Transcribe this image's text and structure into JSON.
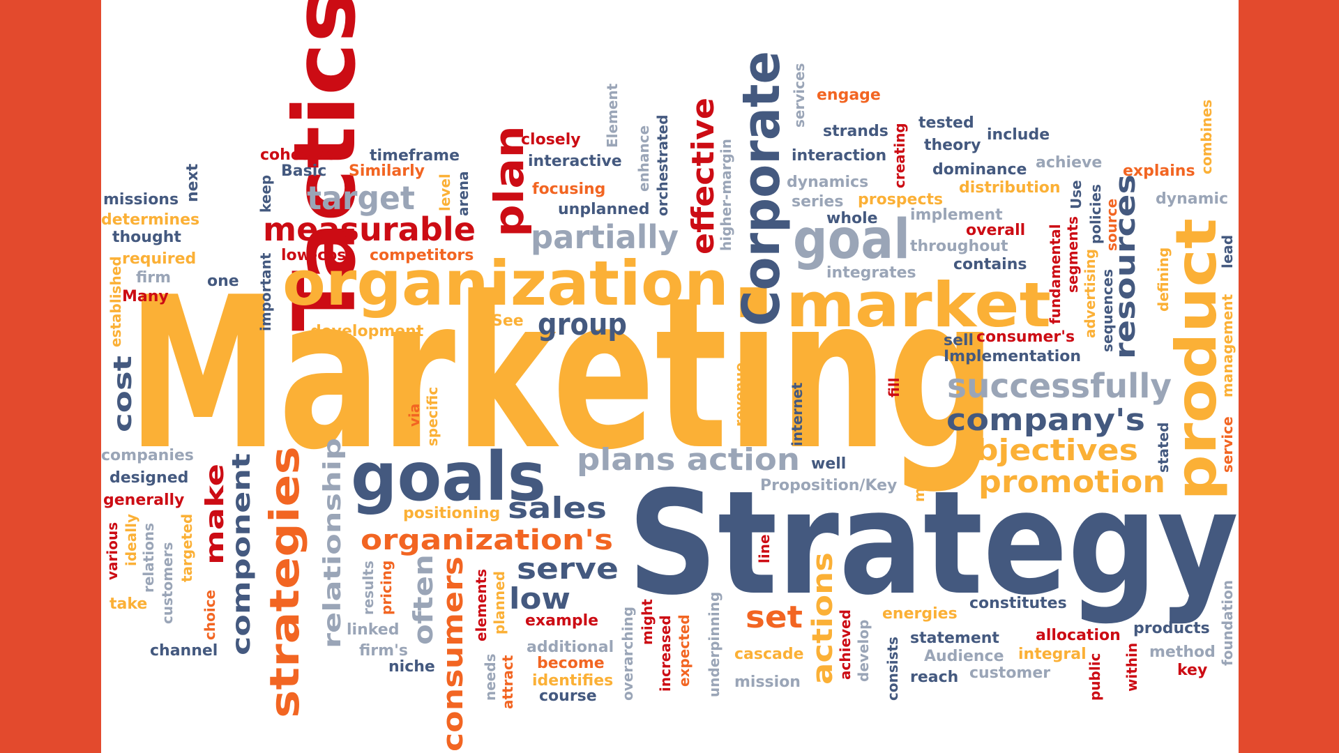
{
  "colors": {
    "border": "#e34a2d",
    "background": "#ffffff",
    "yellow": "#fbb036",
    "navy": "#44597f",
    "gray": "#9aa5b7",
    "red": "#cc0c14",
    "orange": "#f26522"
  },
  "words": {
    "marketing": "Marketing",
    "strategy": "Strategy",
    "tactics": "Tactics",
    "organization": "organization",
    "corporate": "Corporate",
    "market": "market",
    "goals": "goals",
    "goal": "goal",
    "product": "product",
    "strategies": "strategies",
    "measurable": "measurable",
    "target": "target",
    "partially": "partially",
    "plan": "plan",
    "effective": "effective",
    "resources": "resources",
    "successfully": "successfully",
    "companys": "company's",
    "objectives": "objectives",
    "promotion": "promotion",
    "plans_action": "plans action",
    "organizations": "organization's",
    "sales": "sales",
    "serve": "serve",
    "low": "low",
    "group": "group",
    "consumers": "consumers",
    "actions": "actions",
    "set": "set",
    "relationship": "relationship",
    "component": "component",
    "make": "make",
    "often": "often",
    "cost": "cost",
    "missions": "missions",
    "determines": "determines",
    "thought": "thought",
    "established": "established",
    "required": "required",
    "firm": "firm",
    "one": "one",
    "many": "Many",
    "next": "next",
    "cohesive": "cohesive",
    "basic": "Basic",
    "similarly": "Similarly",
    "timeframe": "timeframe",
    "keep": "keep",
    "low_cost": "low-cost",
    "competitors": "competitors",
    "important": "important",
    "development": "development",
    "level": "level",
    "arena": "arena",
    "closely": "closely",
    "interactive": "interactive",
    "focusing": "focusing",
    "unplanned": "unplanned",
    "element": "Element",
    "enhance": "enhance",
    "orchestrated": "orchestrated",
    "see": "See",
    "higher_margin": "higher-margin",
    "services": "services",
    "engage": "engage",
    "strands": "strands",
    "interaction": "interaction",
    "creating": "creating",
    "tested": "tested",
    "theory": "theory",
    "include": "include",
    "dominance": "dominance",
    "achieve": "achieve",
    "explains": "explains",
    "combines": "combines",
    "dynamics": "dynamics",
    "series": "series",
    "prospects": "prospects",
    "distribution": "distribution",
    "use": "Use",
    "dynamic": "dynamic",
    "whole": "whole",
    "implement": "implement",
    "overall": "overall",
    "throughout": "throughout",
    "integrates": "integrates",
    "contains": "contains",
    "fundamental": "fundamental",
    "segments": "segments",
    "policies": "policies",
    "source": "source",
    "sequences": "sequences",
    "advertising": "advertising",
    "defining": "defining",
    "lead": "lead",
    "management": "management",
    "service": "service",
    "stated": "stated",
    "consumers_possessive": "consumer's",
    "sell": "sell",
    "implementation": "Implementation",
    "fill": "fill",
    "internet": "internet",
    "revenue": "revenue",
    "well": "well",
    "proposition_key": "Proposition/Key",
    "mix": "mix",
    "via": "via",
    "specific": "specific",
    "companies": "companies",
    "designed": "designed",
    "generally": "generally",
    "various": "various",
    "ideally": "ideally",
    "relations": "relations",
    "customers": "customers",
    "targeted": "targeted",
    "take": "take",
    "choice": "choice",
    "channel": "channel",
    "positioning": "positioning",
    "results": "results",
    "pricing": "pricing",
    "linked": "linked",
    "firms": "firm's",
    "niche": "niche",
    "elements": "elements",
    "planned": "planned",
    "needs": "needs",
    "attract": "attract",
    "example": "example",
    "additional": "additional",
    "become": "become",
    "identifies": "identifies",
    "course": "course",
    "overarching": "overarching",
    "might": "might",
    "increased": "increased",
    "expected": "expected",
    "underpinning": "underpinning",
    "line": "line",
    "cascade": "cascade",
    "mission": "mission",
    "achieved": "achieved",
    "develop": "develop",
    "energies": "energies",
    "constitutes": "constitutes",
    "consists": "consists",
    "statement": "statement",
    "allocation": "allocation",
    "products": "products",
    "audience": "Audience",
    "integral": "integral",
    "method": "method",
    "reach": "reach",
    "customer": "customer",
    "public": "public",
    "within": "within",
    "key": "key",
    "foundation": "foundation"
  }
}
